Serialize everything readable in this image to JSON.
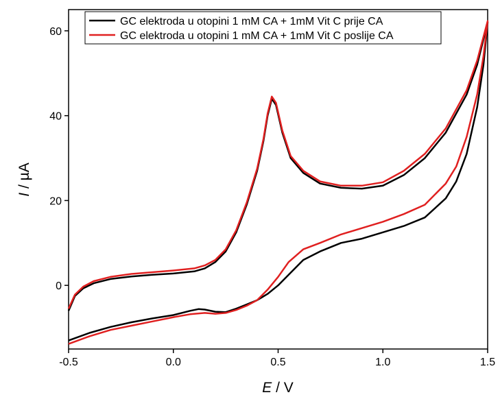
{
  "chart_data": {
    "type": "line",
    "xlabel_italic": "E",
    "xlabel_rest": " / V",
    "ylabel_italic": "I",
    "ylabel_rest": " / µA",
    "xlim": [
      -0.5,
      1.5
    ],
    "ylim": [
      -15,
      65
    ],
    "x_ticks": [
      -0.5,
      0.0,
      0.5,
      1.0,
      1.5
    ],
    "x_tick_labels": [
      "-0.5",
      "0.0",
      "0.5",
      "1.0",
      "1.5"
    ],
    "y_ticks": [
      0,
      20,
      40,
      60
    ],
    "y_tick_labels": [
      "0",
      "20",
      "40",
      "60"
    ],
    "grid": false,
    "legend_position": "top-left",
    "series": [
      {
        "name": "GC elektroda u otopini 1 mM CA + 1mM Vit C prije CA",
        "color": "#000000",
        "points": [
          [
            -0.5,
            -6.0
          ],
          [
            -0.47,
            -2.5
          ],
          [
            -0.43,
            -0.7
          ],
          [
            -0.38,
            0.5
          ],
          [
            -0.3,
            1.5
          ],
          [
            -0.2,
            2.1
          ],
          [
            -0.1,
            2.5
          ],
          [
            0.0,
            2.8
          ],
          [
            0.1,
            3.3
          ],
          [
            0.15,
            4.0
          ],
          [
            0.2,
            5.5
          ],
          [
            0.25,
            8.0
          ],
          [
            0.3,
            12.5
          ],
          [
            0.35,
            19.0
          ],
          [
            0.4,
            27.0
          ],
          [
            0.43,
            34.0
          ],
          [
            0.45,
            40.0
          ],
          [
            0.47,
            44.0
          ],
          [
            0.49,
            42.5
          ],
          [
            0.52,
            36.0
          ],
          [
            0.56,
            30.0
          ],
          [
            0.62,
            26.5
          ],
          [
            0.7,
            24.0
          ],
          [
            0.8,
            23.0
          ],
          [
            0.9,
            22.8
          ],
          [
            1.0,
            23.5
          ],
          [
            1.1,
            26.0
          ],
          [
            1.2,
            30.0
          ],
          [
            1.3,
            36.0
          ],
          [
            1.4,
            45.0
          ],
          [
            1.45,
            52.0
          ],
          [
            1.5,
            62.0
          ],
          [
            1.48,
            52.0
          ],
          [
            1.45,
            42.0
          ],
          [
            1.4,
            31.0
          ],
          [
            1.35,
            24.5
          ],
          [
            1.3,
            20.5
          ],
          [
            1.2,
            16.0
          ],
          [
            1.1,
            14.0
          ],
          [
            1.0,
            12.5
          ],
          [
            0.9,
            11.0
          ],
          [
            0.8,
            10.0
          ],
          [
            0.7,
            8.0
          ],
          [
            0.62,
            6.0
          ],
          [
            0.55,
            2.5
          ],
          [
            0.5,
            0.0
          ],
          [
            0.45,
            -2.0
          ],
          [
            0.4,
            -3.5
          ],
          [
            0.35,
            -4.5
          ],
          [
            0.3,
            -5.5
          ],
          [
            0.25,
            -6.3
          ],
          [
            0.2,
            -6.2
          ],
          [
            0.15,
            -5.7
          ],
          [
            0.12,
            -5.6
          ],
          [
            0.08,
            -6.0
          ],
          [
            0.0,
            -7.0
          ],
          [
            -0.1,
            -7.8
          ],
          [
            -0.2,
            -8.7
          ],
          [
            -0.3,
            -9.8
          ],
          [
            -0.4,
            -11.2
          ],
          [
            -0.5,
            -13.0
          ]
        ]
      },
      {
        "name": "GC elektroda u otopini 1 mM CA + 1mM Vit C poslije CA",
        "color": "#e02020",
        "points": [
          [
            -0.5,
            -5.5
          ],
          [
            -0.47,
            -2.2
          ],
          [
            -0.43,
            -0.3
          ],
          [
            -0.38,
            1.0
          ],
          [
            -0.3,
            2.0
          ],
          [
            -0.2,
            2.7
          ],
          [
            -0.1,
            3.1
          ],
          [
            0.0,
            3.5
          ],
          [
            0.1,
            4.0
          ],
          [
            0.15,
            4.7
          ],
          [
            0.2,
            6.0
          ],
          [
            0.25,
            8.5
          ],
          [
            0.3,
            13.0
          ],
          [
            0.35,
            19.5
          ],
          [
            0.4,
            27.5
          ],
          [
            0.43,
            34.5
          ],
          [
            0.45,
            40.5
          ],
          [
            0.47,
            44.5
          ],
          [
            0.49,
            43.0
          ],
          [
            0.52,
            36.5
          ],
          [
            0.56,
            30.5
          ],
          [
            0.62,
            27.0
          ],
          [
            0.7,
            24.5
          ],
          [
            0.8,
            23.5
          ],
          [
            0.9,
            23.5
          ],
          [
            1.0,
            24.3
          ],
          [
            1.1,
            27.0
          ],
          [
            1.2,
            31.0
          ],
          [
            1.3,
            37.0
          ],
          [
            1.4,
            46.0
          ],
          [
            1.45,
            53.0
          ],
          [
            1.5,
            62.3
          ],
          [
            1.48,
            54.0
          ],
          [
            1.45,
            45.0
          ],
          [
            1.4,
            35.0
          ],
          [
            1.35,
            28.0
          ],
          [
            1.3,
            24.0
          ],
          [
            1.2,
            19.0
          ],
          [
            1.1,
            16.8
          ],
          [
            1.0,
            15.0
          ],
          [
            0.9,
            13.5
          ],
          [
            0.8,
            12.0
          ],
          [
            0.7,
            10.0
          ],
          [
            0.62,
            8.5
          ],
          [
            0.55,
            5.5
          ],
          [
            0.5,
            2.0
          ],
          [
            0.45,
            -1.0
          ],
          [
            0.4,
            -3.5
          ],
          [
            0.35,
            -4.8
          ],
          [
            0.3,
            -5.8
          ],
          [
            0.25,
            -6.5
          ],
          [
            0.2,
            -6.7
          ],
          [
            0.15,
            -6.5
          ],
          [
            0.08,
            -6.8
          ],
          [
            0.0,
            -7.5
          ],
          [
            -0.1,
            -8.5
          ],
          [
            -0.2,
            -9.5
          ],
          [
            -0.3,
            -10.5
          ],
          [
            -0.4,
            -12.0
          ],
          [
            -0.5,
            -13.8
          ]
        ]
      }
    ]
  }
}
